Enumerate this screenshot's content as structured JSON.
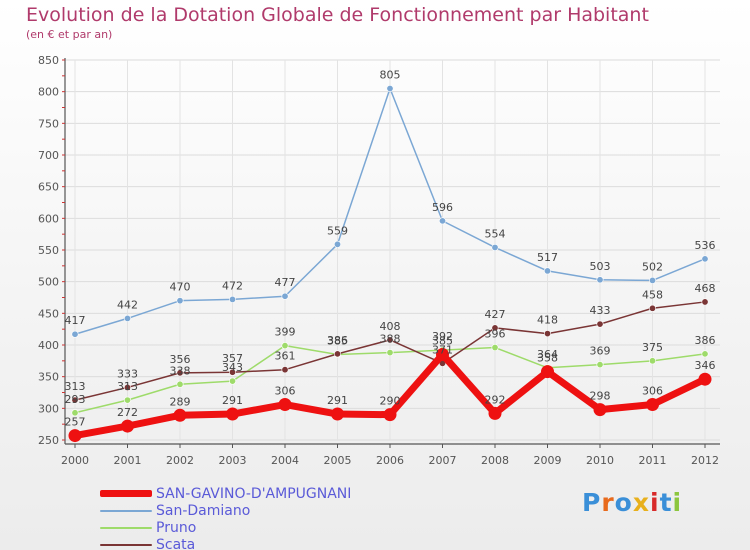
{
  "header": {
    "title": "Evolution de la Dotation Globale de Fonctionnement par Habitant",
    "subtitle": "(en € et par an)"
  },
  "logo": {
    "text": "Proxiti",
    "colors": [
      "#3a8fd8",
      "#e86a1c",
      "#3a8fd8",
      "#e8b01c",
      "#d82a2a",
      "#3a8fd8",
      "#8cc63e"
    ]
  },
  "chart_data": {
    "type": "line",
    "title": "Evolution de la Dotation Globale de Fonctionnement par Habitant",
    "subtitle": "(en € et par an)",
    "xlabel": "",
    "ylabel": "",
    "x": [
      "2000",
      "2001",
      "2002",
      "2003",
      "2004",
      "2005",
      "2006",
      "2007",
      "2008",
      "2009",
      "2010",
      "2011",
      "2012"
    ],
    "ylim": [
      250,
      850
    ],
    "yticks": [
      250,
      300,
      350,
      400,
      450,
      500,
      550,
      600,
      650,
      700,
      750,
      800,
      850
    ],
    "grid": true,
    "legend_position": "bottom-left",
    "series": [
      {
        "name": "SAN-GAVINO-D'AMPUGNANI",
        "color": "#ee1111",
        "values": [
          257,
          272,
          289,
          291,
          306,
          291,
          290,
          385,
          292,
          358,
          298,
          306,
          346
        ],
        "labels": [
          "257",
          "272",
          "289",
          "291",
          "306",
          "291",
          "290",
          "385",
          "292",
          "358",
          "298",
          "306",
          "346"
        ]
      },
      {
        "name": "San-Damiano",
        "color": "#7ba7d4",
        "values": [
          417,
          442,
          470,
          472,
          477,
          559,
          805,
          596,
          554,
          517,
          503,
          502,
          536
        ],
        "labels": [
          "417",
          "442",
          "470",
          "472",
          "477",
          "559",
          "805",
          "596",
          "554",
          "517",
          "503",
          "502",
          "536"
        ]
      },
      {
        "name": "Pruno",
        "color": "#9edb6a",
        "values": [
          293,
          313,
          338,
          343,
          399,
          385,
          388,
          392,
          396,
          364,
          369,
          375,
          386
        ],
        "labels": [
          "293",
          "313",
          "338",
          "343",
          "399",
          "385",
          "388",
          "392",
          "396",
          "364",
          "369",
          "375",
          "386"
        ]
      },
      {
        "name": "Scata",
        "color": "#7a3535",
        "values": [
          313,
          333,
          356,
          357,
          361,
          386,
          408,
          371,
          427,
          418,
          433,
          458,
          468
        ],
        "labels": [
          "313",
          "333",
          "356",
          "357",
          "361",
          "386",
          "408",
          "371",
          "427",
          "418",
          "433",
          "458",
          "468"
        ]
      }
    ]
  }
}
